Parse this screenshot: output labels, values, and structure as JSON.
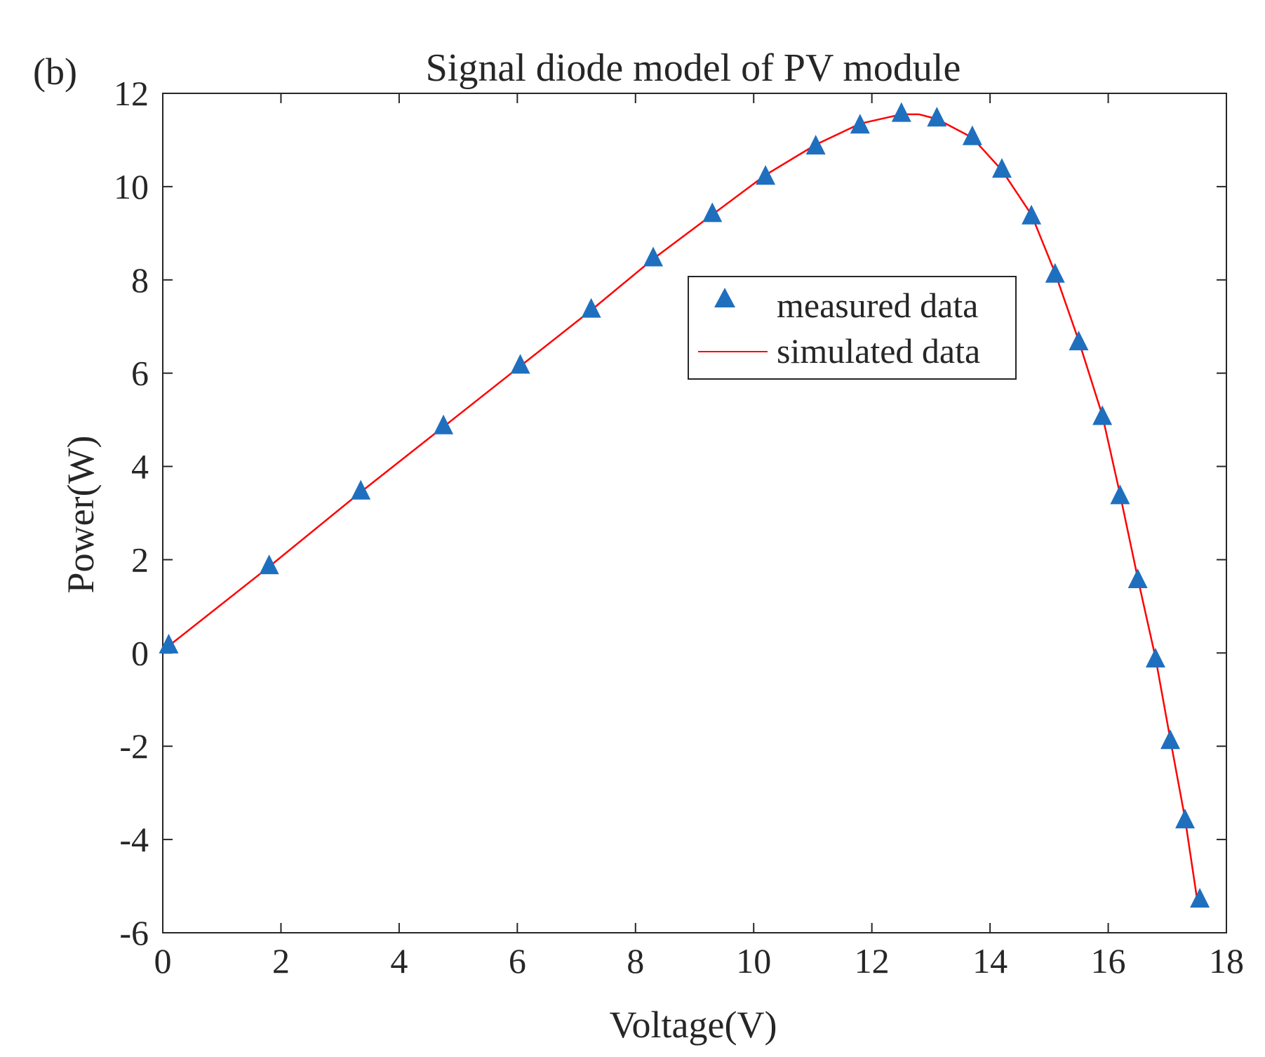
{
  "chart_data": {
    "type": "line",
    "panel_label": "(b)",
    "title": "Signal diode model of PV module",
    "xlabel": "Voltage(V)",
    "ylabel": "Power(W)",
    "xlim": [
      0,
      18
    ],
    "ylim": [
      -6,
      12
    ],
    "xticks": [
      0,
      2,
      4,
      6,
      8,
      10,
      12,
      14,
      16,
      18
    ],
    "yticks": [
      -6,
      -4,
      -2,
      0,
      2,
      4,
      6,
      8,
      10,
      12
    ],
    "xtick_labels": [
      "0",
      "2",
      "4",
      "6",
      "8",
      "10",
      "12",
      "14",
      "16",
      "18"
    ],
    "ytick_labels": [
      "-6",
      "-4",
      "-2",
      "0",
      "2",
      "4",
      "6",
      "8",
      "10",
      "12"
    ],
    "grid": false,
    "legend_position": "upper-center-right",
    "colors": {
      "measured": "#1f6fbf",
      "simulated": "#ff0000",
      "axis": "#262626"
    },
    "series": [
      {
        "name": "measured data",
        "style": "triangle-markers",
        "x": [
          0.1,
          1.8,
          3.35,
          4.75,
          6.05,
          7.25,
          8.3,
          9.3,
          10.2,
          11.05,
          11.8,
          12.5,
          13.1,
          13.7,
          14.2,
          14.7,
          15.1,
          15.5,
          15.9,
          16.2,
          16.5,
          16.8,
          17.05,
          17.3,
          17.55
        ],
        "y": [
          0.2,
          1.9,
          3.5,
          4.9,
          6.2,
          7.4,
          8.5,
          9.45,
          10.25,
          10.9,
          11.35,
          11.6,
          11.5,
          11.1,
          10.4,
          9.4,
          8.15,
          6.7,
          5.1,
          3.4,
          1.6,
          -0.1,
          -1.85,
          -3.55,
          -5.25
        ]
      },
      {
        "name": "simulated data",
        "style": "line",
        "x": [
          0.1,
          1.8,
          3.35,
          4.75,
          6.05,
          7.25,
          8.3,
          9.3,
          10.2,
          11.05,
          11.8,
          12.5,
          12.8,
          13.1,
          13.7,
          14.2,
          14.7,
          15.1,
          15.5,
          15.9,
          16.2,
          16.5,
          16.8,
          17.05,
          17.3,
          17.5
        ],
        "y": [
          0.15,
          1.85,
          3.45,
          4.85,
          6.15,
          7.35,
          8.45,
          9.4,
          10.25,
          10.9,
          11.35,
          11.55,
          11.55,
          11.45,
          11.05,
          10.35,
          9.4,
          8.15,
          6.7,
          5.1,
          3.4,
          1.6,
          -0.1,
          -1.85,
          -3.55,
          -5.25
        ]
      }
    ]
  }
}
